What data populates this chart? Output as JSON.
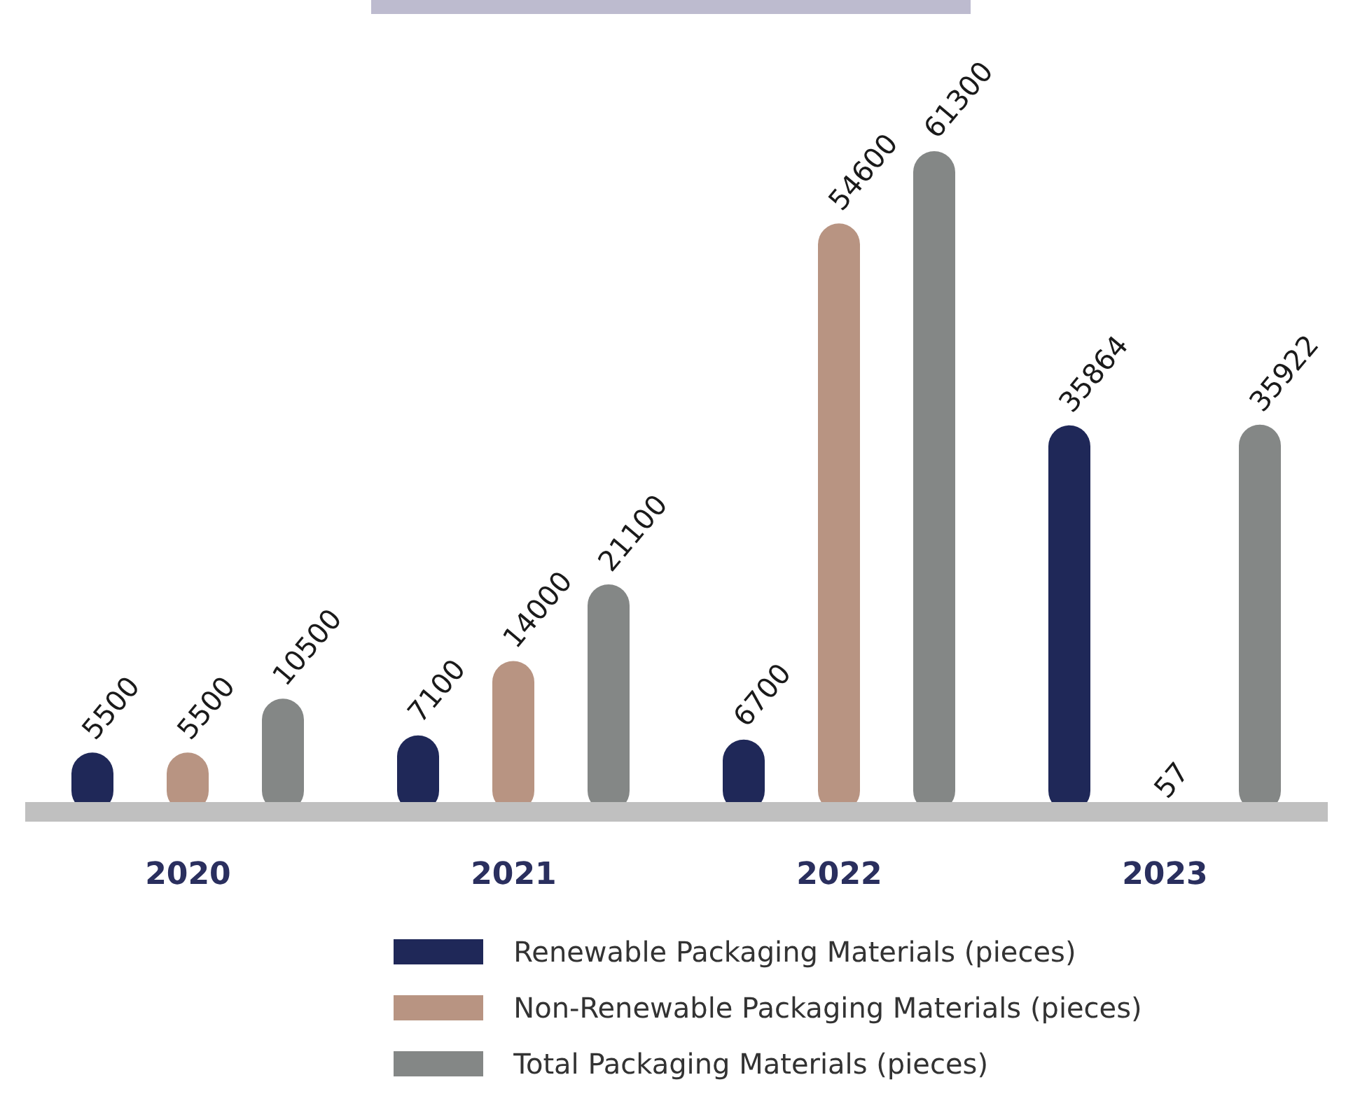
{
  "chart_data": {
    "type": "bar",
    "categories": [
      "2020",
      "2021",
      "2022",
      "2023"
    ],
    "series": [
      {
        "name": "Renewable Packaging Materials (pieces)",
        "color": "#1f2858",
        "values": [
          5500,
          7100,
          6700,
          35864
        ]
      },
      {
        "name": "Non-Renewable Packaging Materials (pieces)",
        "color": "#b89482",
        "values": [
          5500,
          14000,
          54600,
          57
        ]
      },
      {
        "name": "Total Packaging Materials (pieces)",
        "color": "#848786",
        "values": [
          10500,
          21100,
          61300,
          35922
        ]
      }
    ],
    "data_labels": true,
    "legend": "bottom",
    "tick_labels": "x",
    "grid": false
  }
}
